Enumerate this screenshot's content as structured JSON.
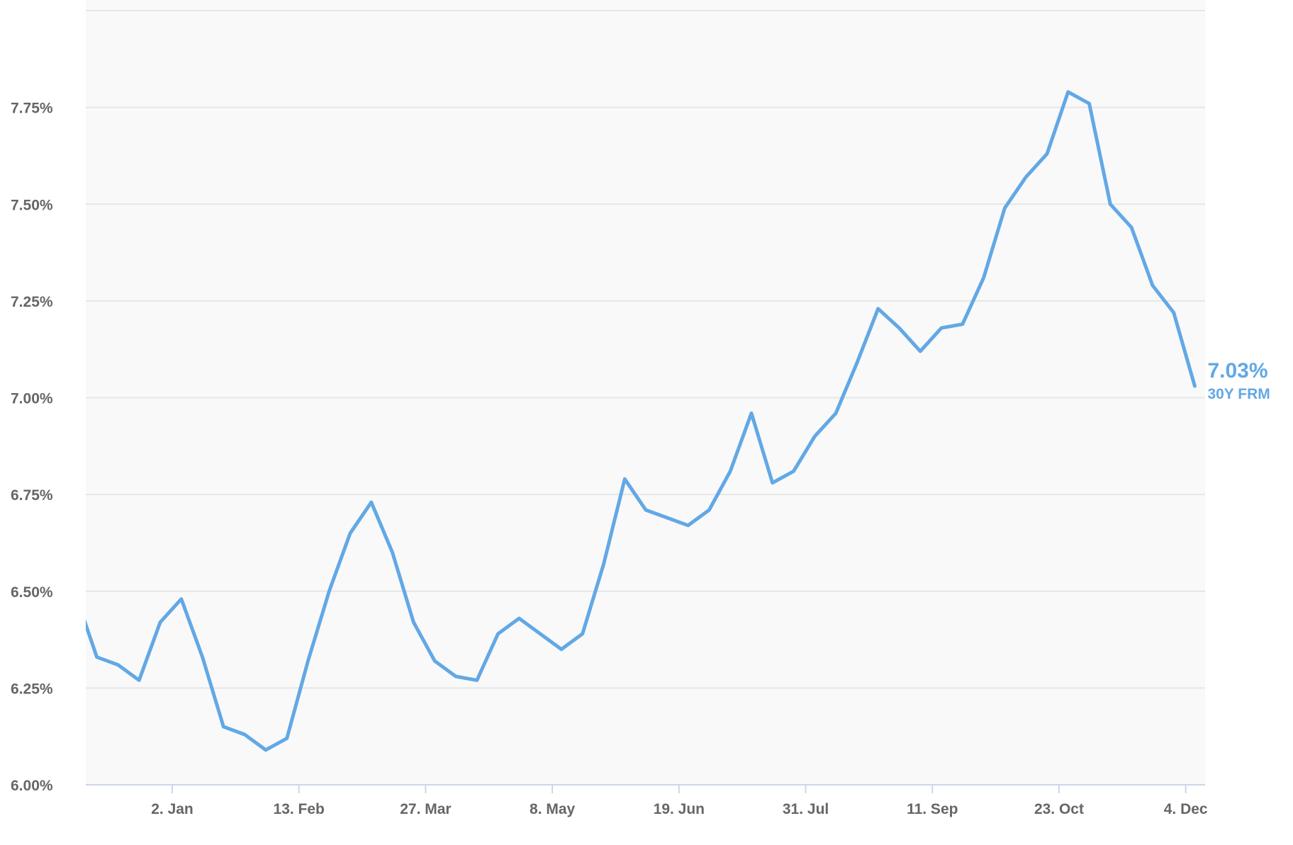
{
  "chart_data": {
    "type": "line",
    "title": "",
    "xlabel": "",
    "ylabel": "",
    "ylim": [
      6.0,
      8.0
    ],
    "xlim": [
      "2022-12-05",
      "2023-12-12"
    ],
    "grid": true,
    "y_ticks": [
      6.0,
      6.25,
      6.5,
      6.75,
      7.0,
      7.25,
      7.5,
      7.75
    ],
    "y_tick_labels": [
      "6.00%",
      "6.25%",
      "6.50%",
      "6.75%",
      "7.00%",
      "7.25%",
      "7.50%",
      "7.75%"
    ],
    "x_ticks": [
      "2023-01-02",
      "2023-02-13",
      "2023-03-27",
      "2023-05-08",
      "2023-06-19",
      "2023-07-31",
      "2023-09-11",
      "2023-10-23",
      "2023-12-04"
    ],
    "x_tick_labels": [
      "2. Jan",
      "13. Feb",
      "27. Mar",
      "8. May",
      "19. Jun",
      "31. Jul",
      "11. Sep",
      "23. Oct",
      "4. Dec"
    ],
    "line_color": "#62a8e5",
    "end_label": {
      "value": "7.03%",
      "series": "30Y FRM"
    },
    "series": [
      {
        "name": "30Y FRM",
        "x": [
          "2022-12-01",
          "2022-12-08",
          "2022-12-15",
          "2022-12-22",
          "2022-12-29",
          "2023-01-05",
          "2023-01-12",
          "2023-01-19",
          "2023-01-26",
          "2023-02-02",
          "2023-02-09",
          "2023-02-16",
          "2023-02-23",
          "2023-03-02",
          "2023-03-09",
          "2023-03-16",
          "2023-03-23",
          "2023-03-30",
          "2023-04-06",
          "2023-04-13",
          "2023-04-20",
          "2023-04-27",
          "2023-05-04",
          "2023-05-11",
          "2023-05-18",
          "2023-05-25",
          "2023-06-01",
          "2023-06-08",
          "2023-06-15",
          "2023-06-22",
          "2023-06-29",
          "2023-07-06",
          "2023-07-13",
          "2023-07-20",
          "2023-07-27",
          "2023-08-03",
          "2023-08-10",
          "2023-08-17",
          "2023-08-24",
          "2023-08-31",
          "2023-09-07",
          "2023-09-14",
          "2023-09-21",
          "2023-09-28",
          "2023-10-05",
          "2023-10-12",
          "2023-10-19",
          "2023-10-26",
          "2023-11-02",
          "2023-11-09",
          "2023-11-16",
          "2023-11-23",
          "2023-11-30",
          "2023-12-07"
        ],
        "values": [
          6.49,
          6.33,
          6.31,
          6.27,
          6.42,
          6.48,
          6.33,
          6.15,
          6.13,
          6.09,
          6.12,
          6.32,
          6.5,
          6.65,
          6.73,
          6.6,
          6.42,
          6.32,
          6.28,
          6.27,
          6.39,
          6.43,
          6.39,
          6.35,
          6.39,
          6.57,
          6.79,
          6.71,
          6.69,
          6.67,
          6.71,
          6.81,
          6.96,
          6.78,
          6.81,
          6.9,
          6.96,
          7.09,
          7.23,
          7.18,
          7.12,
          7.18,
          7.19,
          7.31,
          7.49,
          7.57,
          7.63,
          7.79,
          7.76,
          7.5,
          7.44,
          7.29,
          7.22,
          7.03
        ]
      }
    ]
  }
}
